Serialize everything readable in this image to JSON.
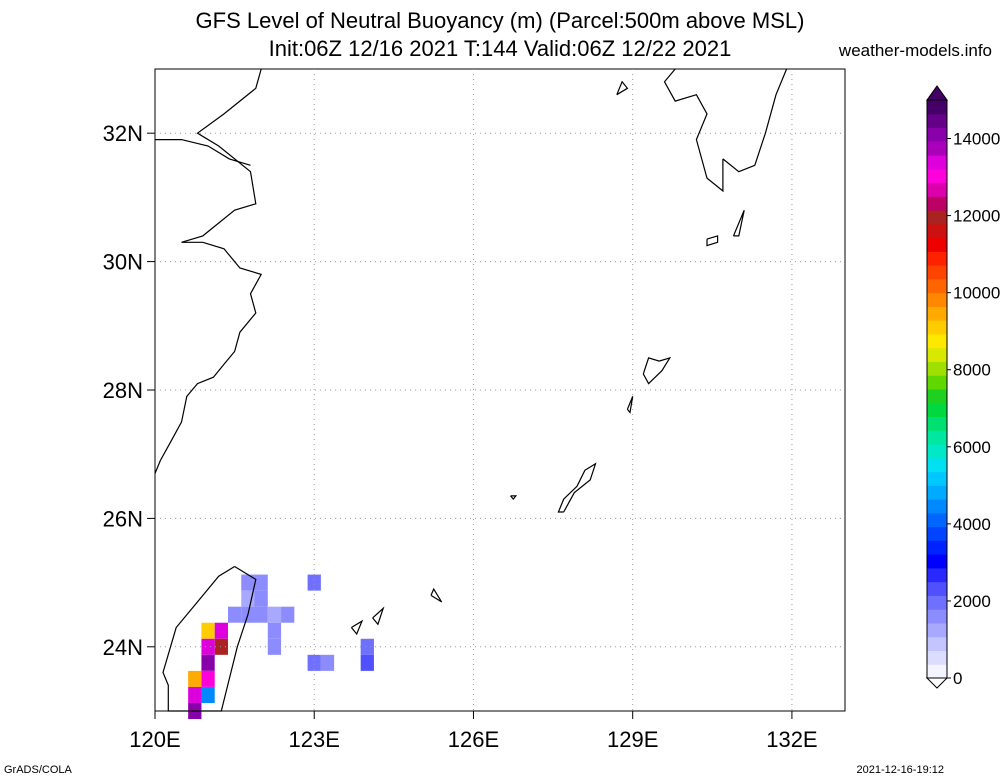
{
  "title_line1": "GFS Level of Neutral Buoyancy (m) (Parcel:500m above MSL)",
  "title_line2": "Init:06Z 12/16 2021 T:144 Valid:06Z 12/22 2021",
  "site": "weather-models.info",
  "footer_left": "GrADS/COLA",
  "footer_right": "2021-12-16-19:12",
  "map": {
    "lon_range": [
      120,
      133
    ],
    "lat_range": [
      23,
      33
    ],
    "lon_ticks": [
      {
        "value": 120,
        "label": "120E"
      },
      {
        "value": 123,
        "label": "123E"
      },
      {
        "value": 126,
        "label": "126E"
      },
      {
        "value": 129,
        "label": "129E"
      },
      {
        "value": 132,
        "label": "132E"
      }
    ],
    "lat_ticks": [
      {
        "value": 24,
        "label": "24N"
      },
      {
        "value": 26,
        "label": "26N"
      },
      {
        "value": 28,
        "label": "28N"
      },
      {
        "value": 30,
        "label": "30N"
      },
      {
        "value": 32,
        "label": "32N"
      }
    ],
    "grid": true,
    "colors": {
      "coastline": "#000000",
      "grid": "#999999"
    }
  },
  "colorbar": {
    "labels": [
      "0",
      "2000",
      "4000",
      "6000",
      "8000",
      "10000",
      "12000",
      "14000"
    ],
    "colors": [
      "#f4f4ff",
      "#dcdcff",
      "#c4c4ff",
      "#a8a8ff",
      "#8c8cff",
      "#7070ff",
      "#5050ff",
      "#2828ff",
      "#0000ff",
      "#0022ff",
      "#0044ff",
      "#0066ff",
      "#0088ff",
      "#00aaff",
      "#00c8ff",
      "#00e0f0",
      "#00e8c8",
      "#00e8a0",
      "#00e070",
      "#00d840",
      "#20d020",
      "#60d800",
      "#a0e000",
      "#d8e800",
      "#ffe800",
      "#ffcc00",
      "#ffaa00",
      "#ff8800",
      "#ff6600",
      "#ff4400",
      "#ff2200",
      "#ee0000",
      "#cc1111",
      "#aa2222",
      "#bb0066",
      "#dd00aa",
      "#ff00dd",
      "#dd00dd",
      "#aa00bb",
      "#8800aa",
      "#660088",
      "#440066"
    ]
  },
  "field_cells": [
    {
      "lon": 121.75,
      "lat": 25.0,
      "value": 1500
    },
    {
      "lon": 122.0,
      "lat": 25.0,
      "value": 1500
    },
    {
      "lon": 121.75,
      "lat": 24.75,
      "value": 1400
    },
    {
      "lon": 122.0,
      "lat": 24.75,
      "value": 1500
    },
    {
      "lon": 121.5,
      "lat": 24.5,
      "value": 1500
    },
    {
      "lon": 121.75,
      "lat": 24.5,
      "value": 1500
    },
    {
      "lon": 122.0,
      "lat": 24.5,
      "value": 1500
    },
    {
      "lon": 122.25,
      "lat": 24.5,
      "value": 1400
    },
    {
      "lon": 122.5,
      "lat": 24.5,
      "value": 1500
    },
    {
      "lon": 122.25,
      "lat": 24.25,
      "value": 1500
    },
    {
      "lon": 122.25,
      "lat": 24.0,
      "value": 1500
    },
    {
      "lon": 123.0,
      "lat": 25.0,
      "value": 2000
    },
    {
      "lon": 123.0,
      "lat": 23.75,
      "value": 2000
    },
    {
      "lon": 123.25,
      "lat": 23.75,
      "value": 1700
    },
    {
      "lon": 124.0,
      "lat": 24.0,
      "value": 2000
    },
    {
      "lon": 124.0,
      "lat": 23.75,
      "value": 2200
    },
    {
      "lon": 121.0,
      "lat": 24.25,
      "value": 9000
    },
    {
      "lon": 121.25,
      "lat": 24.25,
      "value": 13500
    },
    {
      "lon": 121.25,
      "lat": 24.0,
      "value": 12000
    },
    {
      "lon": 121.0,
      "lat": 24.0,
      "value": 13500
    },
    {
      "lon": 121.0,
      "lat": 23.75,
      "value": 14000
    },
    {
      "lon": 121.0,
      "lat": 23.5,
      "value": 13000
    },
    {
      "lon": 120.75,
      "lat": 23.5,
      "value": 9500
    },
    {
      "lon": 121.0,
      "lat": 23.25,
      "value": 4500
    },
    {
      "lon": 120.75,
      "lat": 23.25,
      "value": 13500
    },
    {
      "lon": 120.75,
      "lat": 23.0,
      "value": 14000
    }
  ],
  "coastlines": [
    {
      "name": "china-coast",
      "points": [
        [
          120.0,
          26.7
        ],
        [
          120.1,
          26.9
        ],
        [
          120.3,
          27.2
        ],
        [
          120.5,
          27.5
        ],
        [
          120.6,
          27.9
        ],
        [
          120.8,
          28.1
        ],
        [
          121.1,
          28.2
        ],
        [
          121.3,
          28.4
        ],
        [
          121.5,
          28.6
        ],
        [
          121.6,
          28.9
        ],
        [
          121.9,
          29.2
        ],
        [
          121.8,
          29.5
        ],
        [
          122.0,
          29.8
        ],
        [
          121.6,
          29.9
        ],
        [
          121.3,
          30.2
        ],
        [
          120.9,
          30.3
        ],
        [
          120.5,
          30.3
        ],
        [
          120.9,
          30.4
        ],
        [
          121.5,
          30.8
        ],
        [
          121.9,
          30.9
        ],
        [
          121.8,
          31.4
        ],
        [
          121.2,
          31.8
        ],
        [
          120.8,
          32.0
        ],
        [
          121.3,
          32.3
        ],
        [
          121.9,
          32.7
        ],
        [
          122.0,
          33.0
        ]
      ]
    },
    {
      "name": "yangtze-north",
      "points": [
        [
          120.0,
          31.9
        ],
        [
          120.5,
          31.9
        ],
        [
          121.0,
          31.8
        ],
        [
          121.4,
          31.6
        ],
        [
          121.8,
          31.5
        ]
      ]
    },
    {
      "name": "taiwan",
      "points": [
        [
          121.5,
          25.25
        ],
        [
          121.9,
          25.05
        ],
        [
          121.75,
          24.5
        ],
        [
          121.55,
          24.0
        ],
        [
          121.4,
          23.5
        ],
        [
          121.25,
          23.0
        ],
        [
          120.25,
          23.0
        ],
        [
          120.25,
          23.4
        ],
        [
          120.15,
          23.6
        ],
        [
          120.4,
          24.3
        ],
        [
          120.8,
          24.7
        ],
        [
          121.2,
          25.1
        ],
        [
          121.5,
          25.25
        ]
      ]
    },
    {
      "name": "kyushu-west",
      "points": [
        [
          129.8,
          33.0
        ],
        [
          129.6,
          32.8
        ],
        [
          129.8,
          32.5
        ],
        [
          130.2,
          32.6
        ],
        [
          130.4,
          32.3
        ],
        [
          130.2,
          31.9
        ],
        [
          130.4,
          31.3
        ],
        [
          130.7,
          31.1
        ],
        [
          130.7,
          31.6
        ]
      ]
    },
    {
      "name": "kyushu-east",
      "points": [
        [
          130.7,
          31.6
        ],
        [
          131.0,
          31.4
        ],
        [
          131.3,
          31.5
        ],
        [
          131.5,
          32.0
        ],
        [
          131.7,
          32.6
        ],
        [
          131.9,
          33.0
        ]
      ]
    },
    {
      "name": "amami",
      "points": [
        [
          129.2,
          28.25
        ],
        [
          129.3,
          28.5
        ],
        [
          129.5,
          28.45
        ],
        [
          129.7,
          28.5
        ],
        [
          129.55,
          28.3
        ],
        [
          129.3,
          28.1
        ],
        [
          129.2,
          28.25
        ]
      ]
    },
    {
      "name": "okinawa",
      "points": [
        [
          127.7,
          26.1
        ],
        [
          127.9,
          26.4
        ],
        [
          128.2,
          26.6
        ],
        [
          128.3,
          26.85
        ],
        [
          128.1,
          26.75
        ],
        [
          127.95,
          26.5
        ],
        [
          127.7,
          26.3
        ],
        [
          127.6,
          26.1
        ],
        [
          127.7,
          26.1
        ]
      ]
    },
    {
      "name": "tokunoshima",
      "points": [
        [
          128.9,
          27.7
        ],
        [
          129.0,
          27.9
        ],
        [
          128.95,
          27.65
        ],
        [
          128.9,
          27.7
        ]
      ]
    },
    {
      "name": "yakushima",
      "points": [
        [
          130.4,
          30.35
        ],
        [
          130.6,
          30.4
        ],
        [
          130.6,
          30.3
        ],
        [
          130.4,
          30.25
        ],
        [
          130.4,
          30.35
        ]
      ]
    },
    {
      "name": "tanegashima",
      "points": [
        [
          130.9,
          30.4
        ],
        [
          131.1,
          30.8
        ],
        [
          131.0,
          30.4
        ],
        [
          130.9,
          30.4
        ]
      ]
    },
    {
      "name": "ishigaki",
      "points": [
        [
          124.1,
          24.45
        ],
        [
          124.3,
          24.6
        ],
        [
          124.2,
          24.35
        ],
        [
          124.1,
          24.45
        ]
      ]
    },
    {
      "name": "miyako",
      "points": [
        [
          125.2,
          24.8
        ],
        [
          125.4,
          24.7
        ],
        [
          125.25,
          24.9
        ],
        [
          125.2,
          24.8
        ]
      ]
    },
    {
      "name": "iriomote",
      "points": [
        [
          123.7,
          24.3
        ],
        [
          123.9,
          24.4
        ],
        [
          123.8,
          24.2
        ],
        [
          123.7,
          24.3
        ]
      ]
    },
    {
      "name": "kume",
      "points": [
        [
          126.7,
          26.35
        ],
        [
          126.8,
          26.35
        ],
        [
          126.75,
          26.3
        ],
        [
          126.7,
          26.35
        ]
      ]
    },
    {
      "name": "goto",
      "points": [
        [
          128.7,
          32.6
        ],
        [
          128.8,
          32.8
        ],
        [
          128.9,
          32.7
        ],
        [
          128.7,
          32.6
        ]
      ]
    }
  ]
}
